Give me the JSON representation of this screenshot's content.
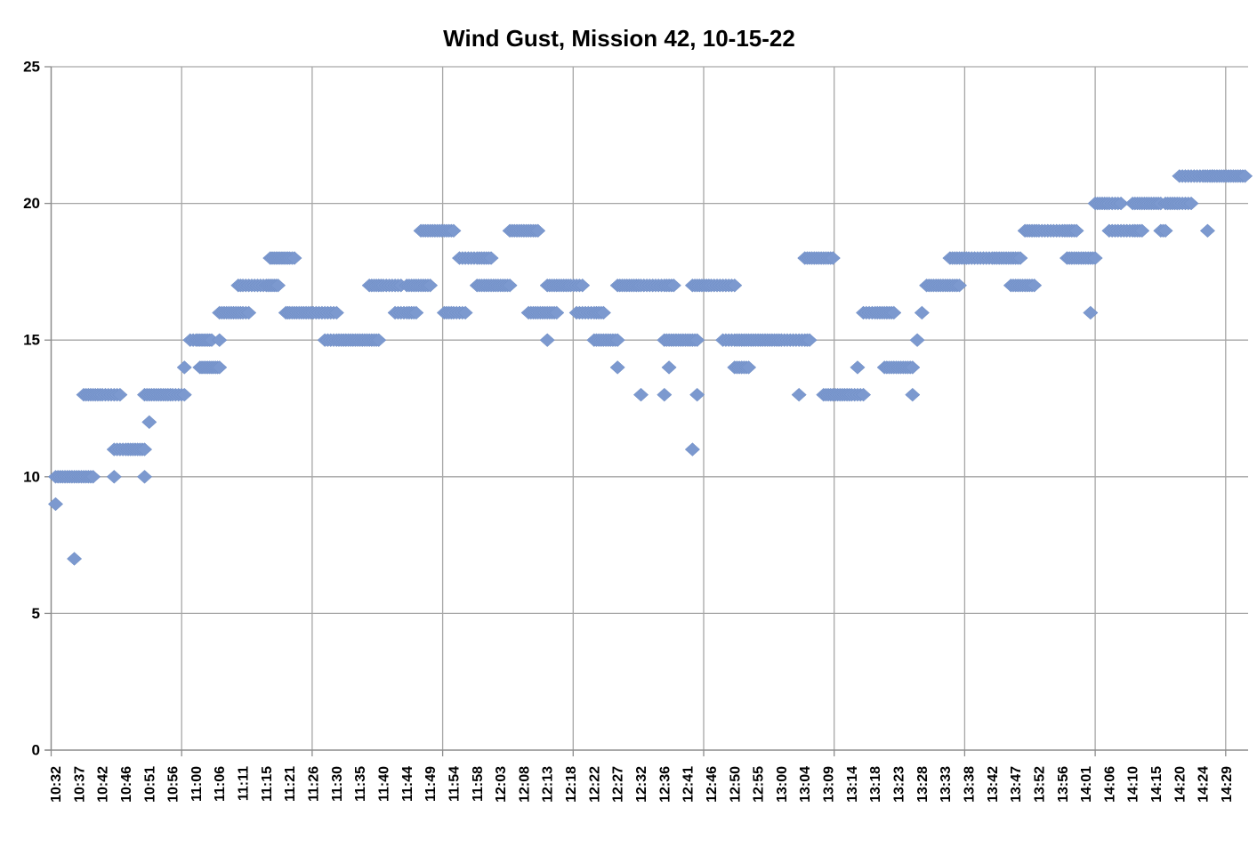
{
  "title": "Wind Gust, Mission 42, 10-15-22",
  "colors": {
    "marker": "#7c99cf",
    "marker_edge": "#6a89c2",
    "gridline": "#a6a6a6",
    "axis": "#8c8c8c",
    "label_text": "#000000"
  },
  "chart_data": {
    "type": "scatter",
    "marker": "diamond",
    "title": "Wind Gust, Mission 42, 10-15-22",
    "xlabel": "",
    "ylabel": "",
    "ylim": [
      0,
      25
    ],
    "grid": true,
    "legend": "none",
    "y_ticks": [
      0,
      5,
      10,
      15,
      20,
      25
    ],
    "x_tick_labels": [
      "10:32",
      "10:37",
      "10:42",
      "10:46",
      "10:51",
      "10:56",
      "11:00",
      "11:06",
      "11:11",
      "11:15",
      "11:21",
      "11:26",
      "11:30",
      "11:35",
      "11:40",
      "11:44",
      "11:49",
      "11:54",
      "11:58",
      "12:03",
      "12:08",
      "12:13",
      "12:18",
      "12:22",
      "12:27",
      "12:32",
      "12:36",
      "12:41",
      "12:46",
      "12:50",
      "12:55",
      "13:00",
      "13:04",
      "13:09",
      "13:14",
      "13:18",
      "13:23",
      "13:28",
      "13:33",
      "13:38",
      "13:42",
      "13:47",
      "13:52",
      "13:56",
      "14:01",
      "14:06",
      "14:10",
      "14:15",
      "14:20",
      "14:24",
      "14:29"
    ],
    "sample_step_minutes": 0.5,
    "runs_note": "Wind gust readings; each run is a span of consecutive samples at a constant value (start time, end time, gust value). Single-sample points have start == end.",
    "segments": [
      {
        "start": "10:32",
        "end": "10:32",
        "value": 9
      },
      {
        "start": "10:32",
        "end": "10:40",
        "value": 10
      },
      {
        "start": "10:36",
        "end": "10:36",
        "value": 7
      },
      {
        "start": "10:38",
        "end": "10:45",
        "value": 13
      },
      {
        "start": "10:44",
        "end": "10:44",
        "value": 10
      },
      {
        "start": "10:44",
        "end": "10:50",
        "value": 11
      },
      {
        "start": "10:50",
        "end": "10:50",
        "value": 10
      },
      {
        "start": "10:51",
        "end": "10:51",
        "value": 12
      },
      {
        "start": "10:50",
        "end": "10:58",
        "value": 13
      },
      {
        "start": "10:58",
        "end": "10:58",
        "value": 14
      },
      {
        "start": "10:59",
        "end": "11:04",
        "value": 15
      },
      {
        "start": "11:01",
        "end": "11:06",
        "value": 14
      },
      {
        "start": "11:06",
        "end": "11:06",
        "value": 15
      },
      {
        "start": "11:06",
        "end": "11:12",
        "value": 16
      },
      {
        "start": "11:10",
        "end": "11:18",
        "value": 17
      },
      {
        "start": "11:16",
        "end": "11:22",
        "value": 18
      },
      {
        "start": "11:20",
        "end": "11:30",
        "value": 16
      },
      {
        "start": "11:28",
        "end": "11:39",
        "value": 15
      },
      {
        "start": "11:37",
        "end": "11:43",
        "value": 17
      },
      {
        "start": "11:42",
        "end": "11:46",
        "value": 16
      },
      {
        "start": "11:44",
        "end": "11:49",
        "value": 17
      },
      {
        "start": "11:47",
        "end": "11:54",
        "value": 19
      },
      {
        "start": "11:52",
        "end": "11:56",
        "value": 16
      },
      {
        "start": "11:55",
        "end": "12:01",
        "value": 18
      },
      {
        "start": "11:58",
        "end": "12:05",
        "value": 17
      },
      {
        "start": "12:05",
        "end": "12:11",
        "value": 19
      },
      {
        "start": "12:09",
        "end": "12:15",
        "value": 16
      },
      {
        "start": "12:13",
        "end": "12:13",
        "value": 15
      },
      {
        "start": "12:13",
        "end": "12:20",
        "value": 17
      },
      {
        "start": "12:19",
        "end": "12:24",
        "value": 16
      },
      {
        "start": "12:22",
        "end": "12:27",
        "value": 15
      },
      {
        "start": "12:27",
        "end": "12:27",
        "value": 14
      },
      {
        "start": "12:27",
        "end": "12:38",
        "value": 17
      },
      {
        "start": "12:32",
        "end": "12:32",
        "value": 13
      },
      {
        "start": "12:36",
        "end": "12:36",
        "value": 13
      },
      {
        "start": "12:37",
        "end": "12:37",
        "value": 14
      },
      {
        "start": "12:36",
        "end": "12:43",
        "value": 15
      },
      {
        "start": "12:42",
        "end": "12:42",
        "value": 11
      },
      {
        "start": "12:43",
        "end": "12:43",
        "value": 13
      },
      {
        "start": "12:42",
        "end": "12:50",
        "value": 17
      },
      {
        "start": "12:48",
        "end": "13:05",
        "value": 15
      },
      {
        "start": "12:50",
        "end": "12:53",
        "value": 14
      },
      {
        "start": "13:03",
        "end": "13:03",
        "value": 13
      },
      {
        "start": "13:04",
        "end": "13:10",
        "value": 18
      },
      {
        "start": "13:08",
        "end": "13:16",
        "value": 13
      },
      {
        "start": "13:15",
        "end": "13:15",
        "value": 14
      },
      {
        "start": "13:16",
        "end": "13:22",
        "value": 16
      },
      {
        "start": "13:20",
        "end": "13:26",
        "value": 14
      },
      {
        "start": "13:26",
        "end": "13:26",
        "value": 13
      },
      {
        "start": "13:27",
        "end": "13:27",
        "value": 15
      },
      {
        "start": "13:28",
        "end": "13:28",
        "value": 16
      },
      {
        "start": "13:29",
        "end": "13:36",
        "value": 17
      },
      {
        "start": "13:34",
        "end": "13:48",
        "value": 18
      },
      {
        "start": "13:46",
        "end": "13:51",
        "value": 17
      },
      {
        "start": "13:49",
        "end": "13:59",
        "value": 19
      },
      {
        "start": "13:57",
        "end": "14:03",
        "value": 18
      },
      {
        "start": "14:02",
        "end": "14:02",
        "value": 16
      },
      {
        "start": "14:03",
        "end": "14:08",
        "value": 20
      },
      {
        "start": "14:06",
        "end": "14:12",
        "value": 19
      },
      {
        "start": "14:10",
        "end": "14:16",
        "value": 20
      },
      {
        "start": "14:16",
        "end": "14:17",
        "value": 19
      },
      {
        "start": "14:17",
        "end": "14:22",
        "value": 20
      },
      {
        "start": "14:20",
        "end": "14:26",
        "value": 21
      },
      {
        "start": "14:25",
        "end": "14:25",
        "value": 19
      },
      {
        "start": "14:26",
        "end": "14:33",
        "value": 21
      }
    ]
  }
}
